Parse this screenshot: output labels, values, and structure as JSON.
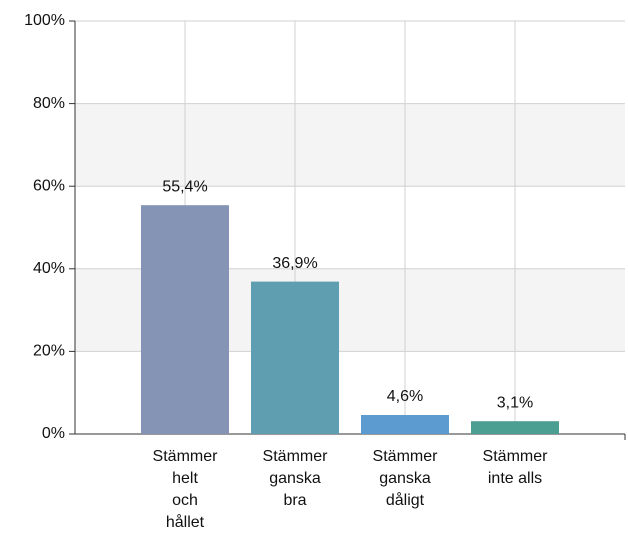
{
  "chart_data": {
    "type": "bar",
    "categories": [
      "Stämmer\nhelt\noch\nhållet",
      "Stämmer\nganska\nbra",
      "Stämmer\nganska\ndåligt",
      "Stämmer\ninte alls"
    ],
    "values": [
      55.4,
      36.9,
      4.6,
      3.1
    ],
    "value_labels": [
      "55,4%",
      "36,9%",
      "4,6%",
      "3,1%"
    ],
    "colors": [
      "#8593b5",
      "#5f9db1",
      "#5b9bcf",
      "#4a9e92"
    ],
    "ylim": [
      0,
      100
    ],
    "yticks": [
      {
        "value": 0,
        "label": "0%"
      },
      {
        "value": 20,
        "label": "20%"
      },
      {
        "value": 40,
        "label": "40%"
      },
      {
        "value": 60,
        "label": "60%"
      },
      {
        "value": 80,
        "label": "80%"
      },
      {
        "value": 100,
        "label": "100%"
      }
    ],
    "grid": true
  }
}
